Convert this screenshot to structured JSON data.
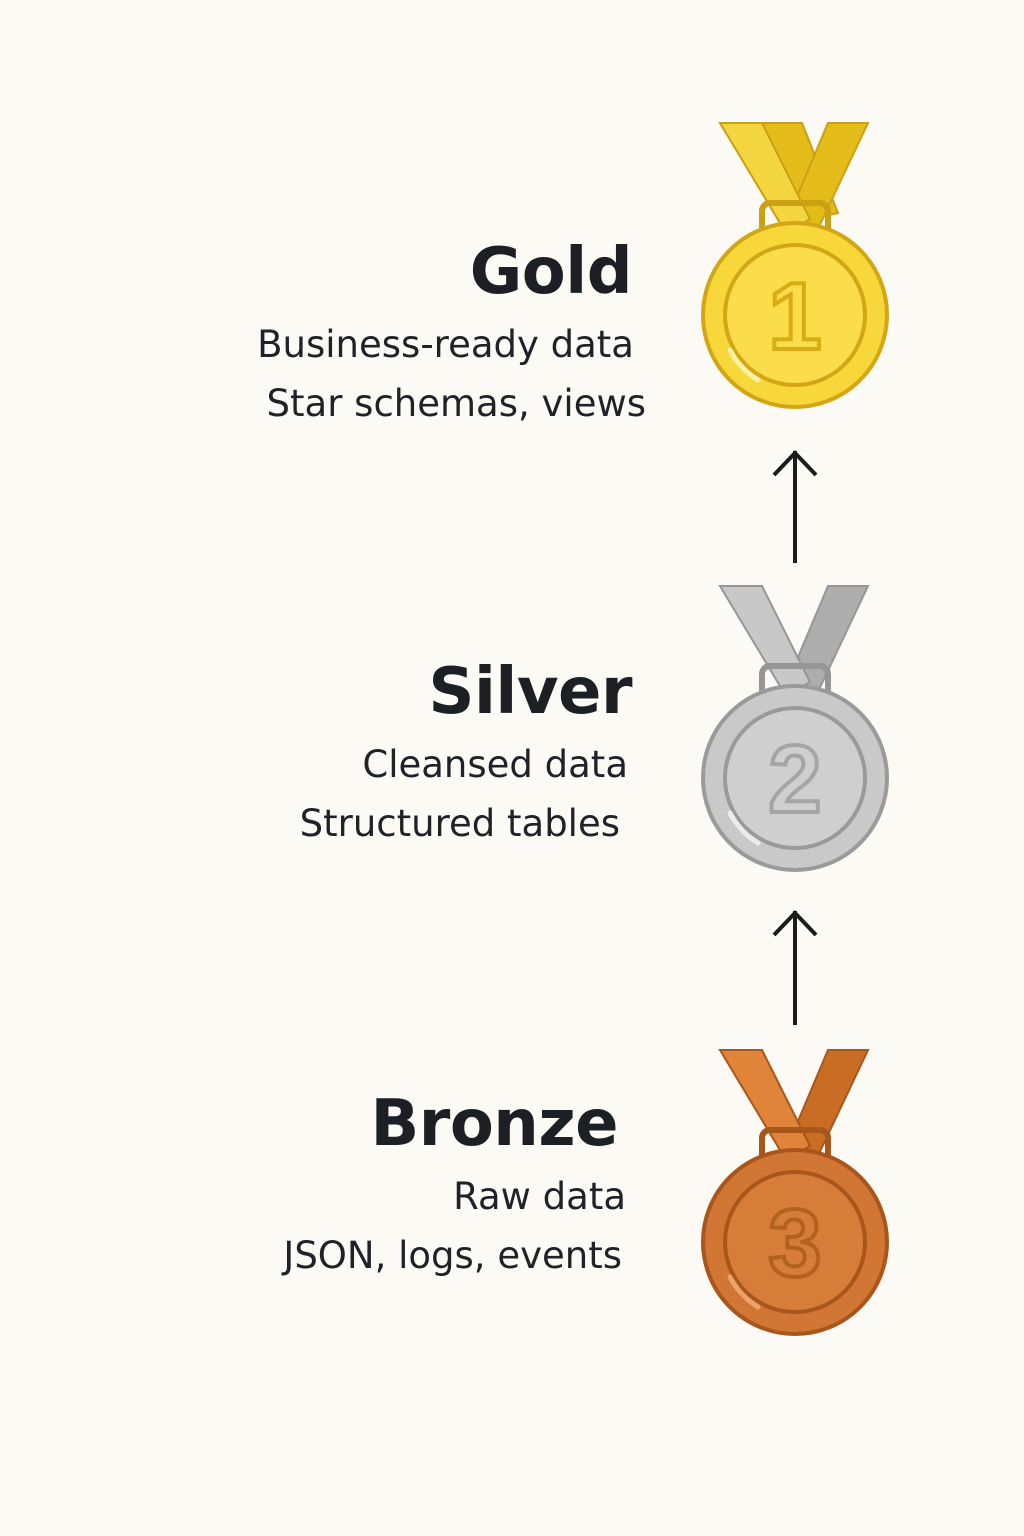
{
  "tiers": [
    {
      "title": "Gold",
      "lines": [
        "Business-ready data",
        "Star schemas, views"
      ],
      "medal_number": "1",
      "medal_icon": "gold-medal-icon",
      "colors": {
        "ribbon_light": "#f3d53f",
        "ribbon_dark": "#e4bc1a",
        "face": "#f8d73a",
        "face_inner": "#fbdc4a",
        "rim": "#d2a614",
        "number": "#d9ab14"
      }
    },
    {
      "title": "Silver",
      "lines": [
        "Cleansed data",
        "Structured tables"
      ],
      "medal_number": "2",
      "medal_icon": "silver-medal-icon",
      "colors": {
        "ribbon_light": "#c8c8c8",
        "ribbon_dark": "#adadad",
        "face": "#c9c9c9",
        "face_inner": "#cfcfcf",
        "rim": "#9a9a9a",
        "number": "#a5a5a5"
      }
    },
    {
      "title": "Bronze",
      "lines": [
        "Raw data",
        "JSON, logs, events"
      ],
      "medal_number": "3",
      "medal_icon": "bronze-medal-icon",
      "colors": {
        "ribbon_light": "#e0843a",
        "ribbon_dark": "#c96d24",
        "face": "#d17634",
        "face_inner": "#d67d3a",
        "rim": "#a9561d",
        "number": "#b3611f"
      }
    }
  ],
  "arrows": [
    {
      "icon": "arrow-up-icon",
      "color": "#1c1c1c"
    },
    {
      "icon": "arrow-up-icon",
      "color": "#1c1c1c"
    }
  ]
}
